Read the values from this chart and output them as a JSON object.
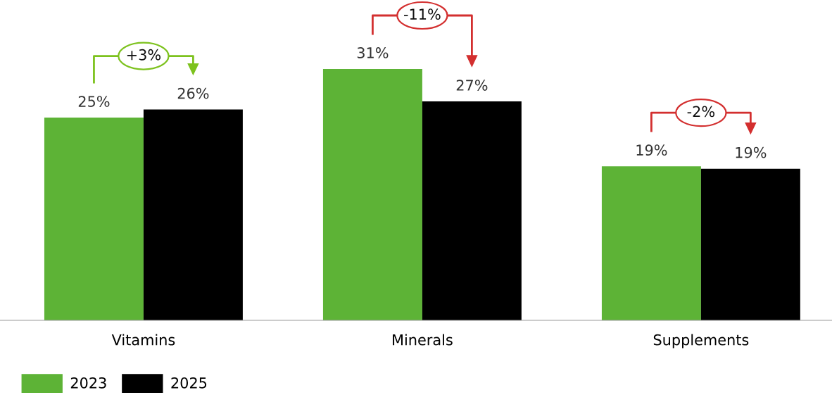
{
  "chart_data": {
    "type": "bar",
    "categories": [
      "Vitamins",
      "Minerals",
      "Supplements"
    ],
    "series": [
      {
        "name": "2023",
        "color": "#5db336",
        "values": [
          25,
          31,
          19
        ],
        "value_labels": [
          "25%",
          "31%",
          "19%"
        ]
      },
      {
        "name": "2025",
        "color": "#000000",
        "values": [
          26,
          27,
          18.7
        ],
        "value_labels": [
          "26%",
          "27%",
          "19%"
        ]
      }
    ],
    "annotations": [
      "+3%",
      "-11%",
      "-2%"
    ],
    "tick_labels": "x",
    "grid": false,
    "legend": "bottom left"
  }
}
